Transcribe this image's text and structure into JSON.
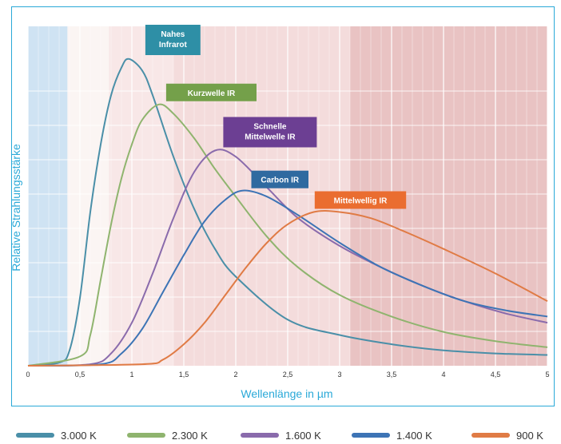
{
  "chart_data": {
    "type": "line",
    "xlabel": "Wellenlänge in µm",
    "ylabel": "Relative Strahlungsstärke",
    "xlim": [
      0,
      5
    ],
    "ylim": [
      0,
      1
    ],
    "x_ticks": [
      "0",
      "0,5",
      "1",
      "1,5",
      "2",
      "2,5",
      "3",
      "3,5",
      "4",
      "4,5",
      "5"
    ],
    "grid": true,
    "legend_position": "bottom",
    "bands": [
      {
        "from": 0,
        "to": 0.38,
        "color": "#cfe3f3"
      },
      {
        "from": 0.38,
        "to": 0.78,
        "color": "#fbf5f3"
      },
      {
        "from": 0.78,
        "to": 1.4,
        "color": "#f8e7e7"
      },
      {
        "from": 1.4,
        "to": 3.1,
        "color": "#f4dcdc"
      },
      {
        "from": 3.1,
        "to": 5,
        "color": "#e9c3c3"
      }
    ],
    "series": [
      {
        "name": "3.000 K",
        "color": "#4a8fa8",
        "peak_x": 0.97,
        "peak_y": 0.998,
        "points": [
          [
            0,
            0
          ],
          [
            0.3,
            0.01
          ],
          [
            0.4,
            0.05
          ],
          [
            0.5,
            0.22
          ],
          [
            0.6,
            0.5
          ],
          [
            0.7,
            0.72
          ],
          [
            0.8,
            0.88
          ],
          [
            0.9,
            0.97
          ],
          [
            0.97,
            0.998
          ],
          [
            1.1,
            0.96
          ],
          [
            1.2,
            0.88
          ],
          [
            1.4,
            0.68
          ],
          [
            1.6,
            0.51
          ],
          [
            1.8,
            0.38
          ],
          [
            2.0,
            0.29
          ],
          [
            2.5,
            0.15
          ],
          [
            3.0,
            0.1
          ],
          [
            3.5,
            0.07
          ],
          [
            4.0,
            0.05
          ],
          [
            4.5,
            0.04
          ],
          [
            5.0,
            0.035
          ]
        ]
      },
      {
        "name": "2.300 K",
        "color": "#8fb46e",
        "peak_x": 1.26,
        "peak_y": 0.85,
        "points": [
          [
            0,
            0
          ],
          [
            0.5,
            0.03
          ],
          [
            0.6,
            0.1
          ],
          [
            0.7,
            0.28
          ],
          [
            0.8,
            0.46
          ],
          [
            0.9,
            0.61
          ],
          [
            1.0,
            0.72
          ],
          [
            1.1,
            0.8
          ],
          [
            1.26,
            0.85
          ],
          [
            1.4,
            0.82
          ],
          [
            1.6,
            0.74
          ],
          [
            1.8,
            0.64
          ],
          [
            2.0,
            0.55
          ],
          [
            2.3,
            0.42
          ],
          [
            2.6,
            0.32
          ],
          [
            3.0,
            0.23
          ],
          [
            3.5,
            0.16
          ],
          [
            4.0,
            0.11
          ],
          [
            4.5,
            0.08
          ],
          [
            5.0,
            0.06
          ]
        ]
      },
      {
        "name": "1.600 K",
        "color": "#8a6bac",
        "peak_x": 1.8,
        "peak_y": 0.7,
        "points": [
          [
            0,
            0
          ],
          [
            0.6,
            0.005
          ],
          [
            0.8,
            0.04
          ],
          [
            1.0,
            0.14
          ],
          [
            1.2,
            0.3
          ],
          [
            1.4,
            0.48
          ],
          [
            1.6,
            0.63
          ],
          [
            1.8,
            0.7
          ],
          [
            2.0,
            0.68
          ],
          [
            2.3,
            0.58
          ],
          [
            2.6,
            0.48
          ],
          [
            3.0,
            0.39
          ],
          [
            3.4,
            0.32
          ],
          [
            3.8,
            0.26
          ],
          [
            4.2,
            0.21
          ],
          [
            4.6,
            0.17
          ],
          [
            5.0,
            0.14
          ]
        ]
      },
      {
        "name": "1.400 K",
        "color": "#3d74b5",
        "peak_x": 2.07,
        "peak_y": 0.57,
        "points": [
          [
            0,
            0
          ],
          [
            0.7,
            0.005
          ],
          [
            0.9,
            0.04
          ],
          [
            1.1,
            0.12
          ],
          [
            1.3,
            0.24
          ],
          [
            1.5,
            0.36
          ],
          [
            1.7,
            0.47
          ],
          [
            1.9,
            0.54
          ],
          [
            2.07,
            0.57
          ],
          [
            2.3,
            0.55
          ],
          [
            2.6,
            0.49
          ],
          [
            3.0,
            0.4
          ],
          [
            3.4,
            0.32
          ],
          [
            3.8,
            0.26
          ],
          [
            4.2,
            0.21
          ],
          [
            4.6,
            0.18
          ],
          [
            5.0,
            0.16
          ]
        ]
      },
      {
        "name": "900 K",
        "color": "#e07b45",
        "peak_x": 2.75,
        "peak_y": 0.5,
        "points": [
          [
            0,
            0
          ],
          [
            1.1,
            0.005
          ],
          [
            1.3,
            0.02
          ],
          [
            1.5,
            0.07
          ],
          [
            1.7,
            0.14
          ],
          [
            1.9,
            0.23
          ],
          [
            2.1,
            0.32
          ],
          [
            2.3,
            0.4
          ],
          [
            2.5,
            0.46
          ],
          [
            2.75,
            0.5
          ],
          [
            3.0,
            0.5
          ],
          [
            3.3,
            0.48
          ],
          [
            3.6,
            0.44
          ],
          [
            4.0,
            0.38
          ],
          [
            4.5,
            0.3
          ],
          [
            5.0,
            0.21
          ]
        ]
      }
    ],
    "annotations": [
      {
        "text": [
          "Nahes",
          "Infrarot"
        ],
        "color": "#2e8fa6",
        "x": 1.13,
        "y": 1.0,
        "w": 0.53
      },
      {
        "text": [
          "Kurzwelle IR"
        ],
        "color": "#74a04a",
        "x": 1.33,
        "y": 0.85,
        "w": 0.87
      },
      {
        "text": [
          "Schnelle",
          "Mittelwelle IR"
        ],
        "color": "#6c3f93",
        "x": 1.88,
        "y": 0.7,
        "w": 0.9
      },
      {
        "text": [
          "Carbon IR"
        ],
        "color": "#2f6aa0",
        "x": 2.15,
        "y": 0.567,
        "w": 0.55
      },
      {
        "text": [
          "Mittelwellig IR"
        ],
        "color": "#ea6d30",
        "x": 2.76,
        "y": 0.5,
        "w": 0.88
      }
    ]
  }
}
